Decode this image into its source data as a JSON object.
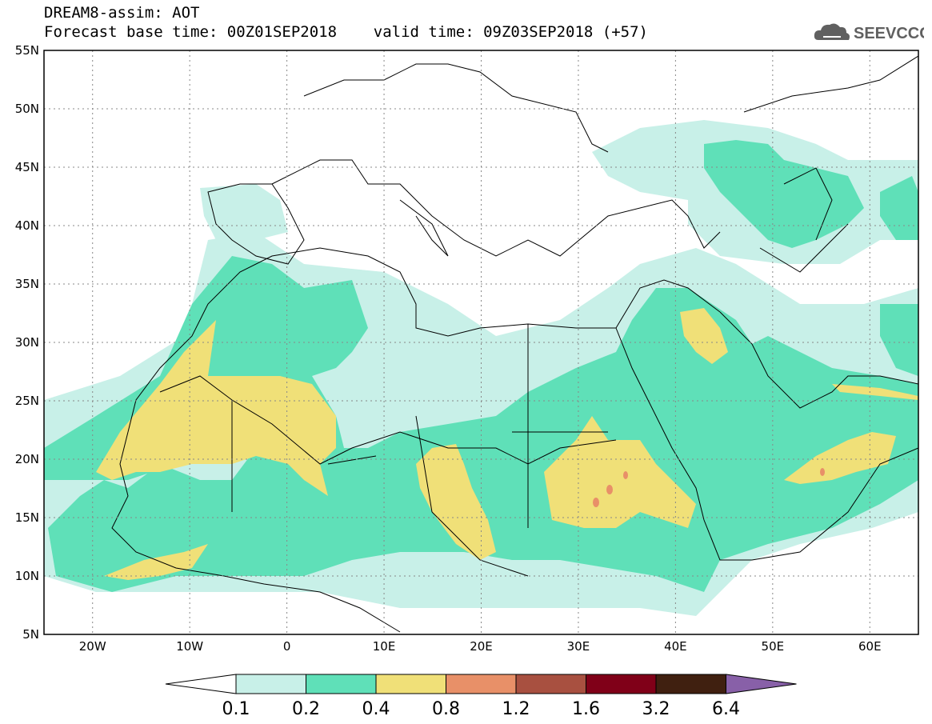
{
  "title": {
    "line1": "DREAM8-assim: AOT",
    "line2": "Forecast base time: 00Z01SEP2018    valid time: 09Z03SEP2018 (+57)"
  },
  "logo": {
    "text": "SEEVCCC",
    "icon": "cloud-icon"
  },
  "map": {
    "lon_range": [
      -25,
      65
    ],
    "lat_range": [
      5,
      55
    ],
    "lat_ticks": [
      "5N",
      "10N",
      "15N",
      "20N",
      "25N",
      "30N",
      "35N",
      "40N",
      "45N",
      "50N",
      "55N"
    ],
    "lon_ticks": [
      "20W",
      "10W",
      "0",
      "10E",
      "20E",
      "30E",
      "40E",
      "50E",
      "60E"
    ],
    "grid": true,
    "field": "AOT"
  },
  "legend": {
    "labels": [
      "0.1",
      "0.2",
      "0.4",
      "0.8",
      "1.2",
      "1.6",
      "3.2",
      "6.4"
    ],
    "colors": [
      "#ffffff",
      "#c8f0e8",
      "#5fe0b8",
      "#f0e078",
      "#e89068",
      "#a85040",
      "#800018",
      "#402010",
      "#8860a8"
    ]
  }
}
